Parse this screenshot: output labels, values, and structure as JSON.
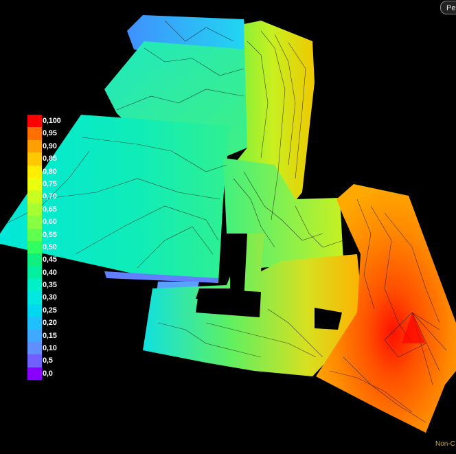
{
  "legend": {
    "items": [
      {
        "label": "0,100",
        "color": "#ff0000"
      },
      {
        "label": "0,95",
        "color": "#ff7000"
      },
      {
        "label": "0,90",
        "color": "#ffa000"
      },
      {
        "label": "0,85",
        "color": "#ffc800"
      },
      {
        "label": "0,80",
        "color": "#ffee00"
      },
      {
        "label": "0,75",
        "color": "#eaff10"
      },
      {
        "label": "0,70",
        "color": "#c8ff20"
      },
      {
        "label": "0,65",
        "color": "#a8ff30"
      },
      {
        "label": "0,60",
        "color": "#88ff40"
      },
      {
        "label": "0,55",
        "color": "#60ff50"
      },
      {
        "label": "0,50",
        "color": "#30ff60"
      },
      {
        "label": "0,45",
        "color": "#10f080"
      },
      {
        "label": "0,40",
        "color": "#00f0a0"
      },
      {
        "label": "0,35",
        "color": "#00f0c8"
      },
      {
        "label": "0,30",
        "color": "#00e8e0"
      },
      {
        "label": "0,25",
        "color": "#00d8f0"
      },
      {
        "label": "0,20",
        "color": "#20c0ff"
      },
      {
        "label": "0,15",
        "color": "#40a8ff"
      },
      {
        "label": "0,10",
        "color": "#6090ff"
      },
      {
        "label": "0,5",
        "color": "#7060ff"
      },
      {
        "label": "0,0",
        "color": "#8800ff"
      }
    ]
  },
  "toolbar": {
    "per_label": "Per"
  },
  "status": {
    "text": "Non-C"
  }
}
